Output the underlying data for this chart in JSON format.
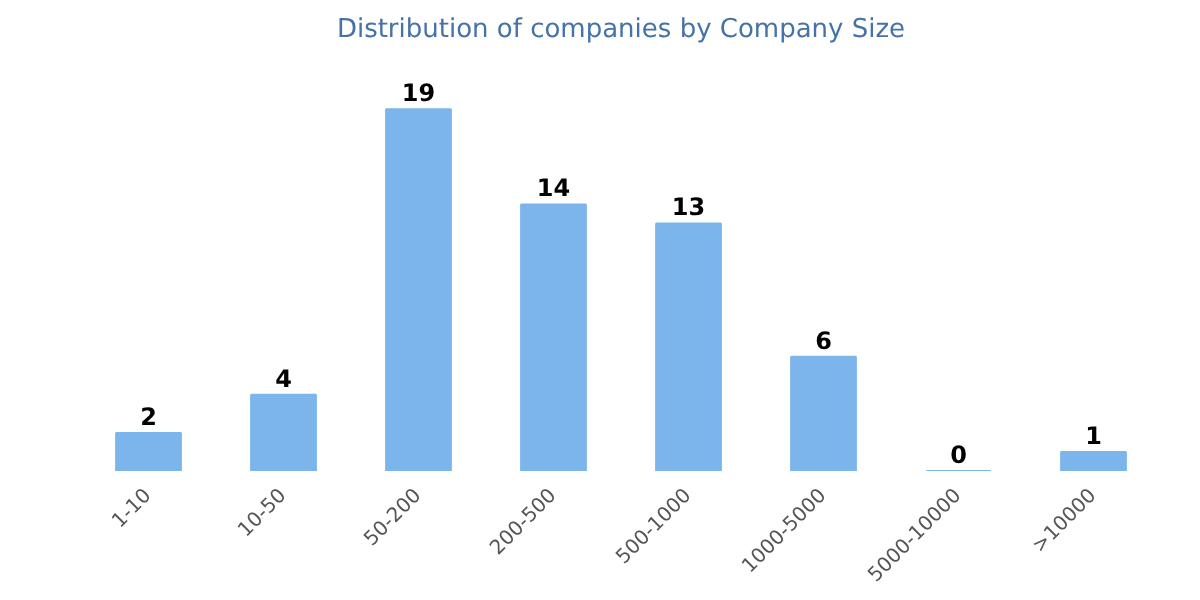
{
  "chart_data": {
    "type": "bar",
    "title": "Distribution of companies by Company Size",
    "categories": [
      "1-10",
      "10-50",
      "50-200",
      "200-500",
      "500-1000",
      "1000-5000",
      "5000-10000",
      ">10000"
    ],
    "values": [
      2,
      4,
      19,
      14,
      13,
      6,
      0,
      1
    ],
    "color": "#7cb5ec",
    "data_labels": true,
    "grid": false
  }
}
